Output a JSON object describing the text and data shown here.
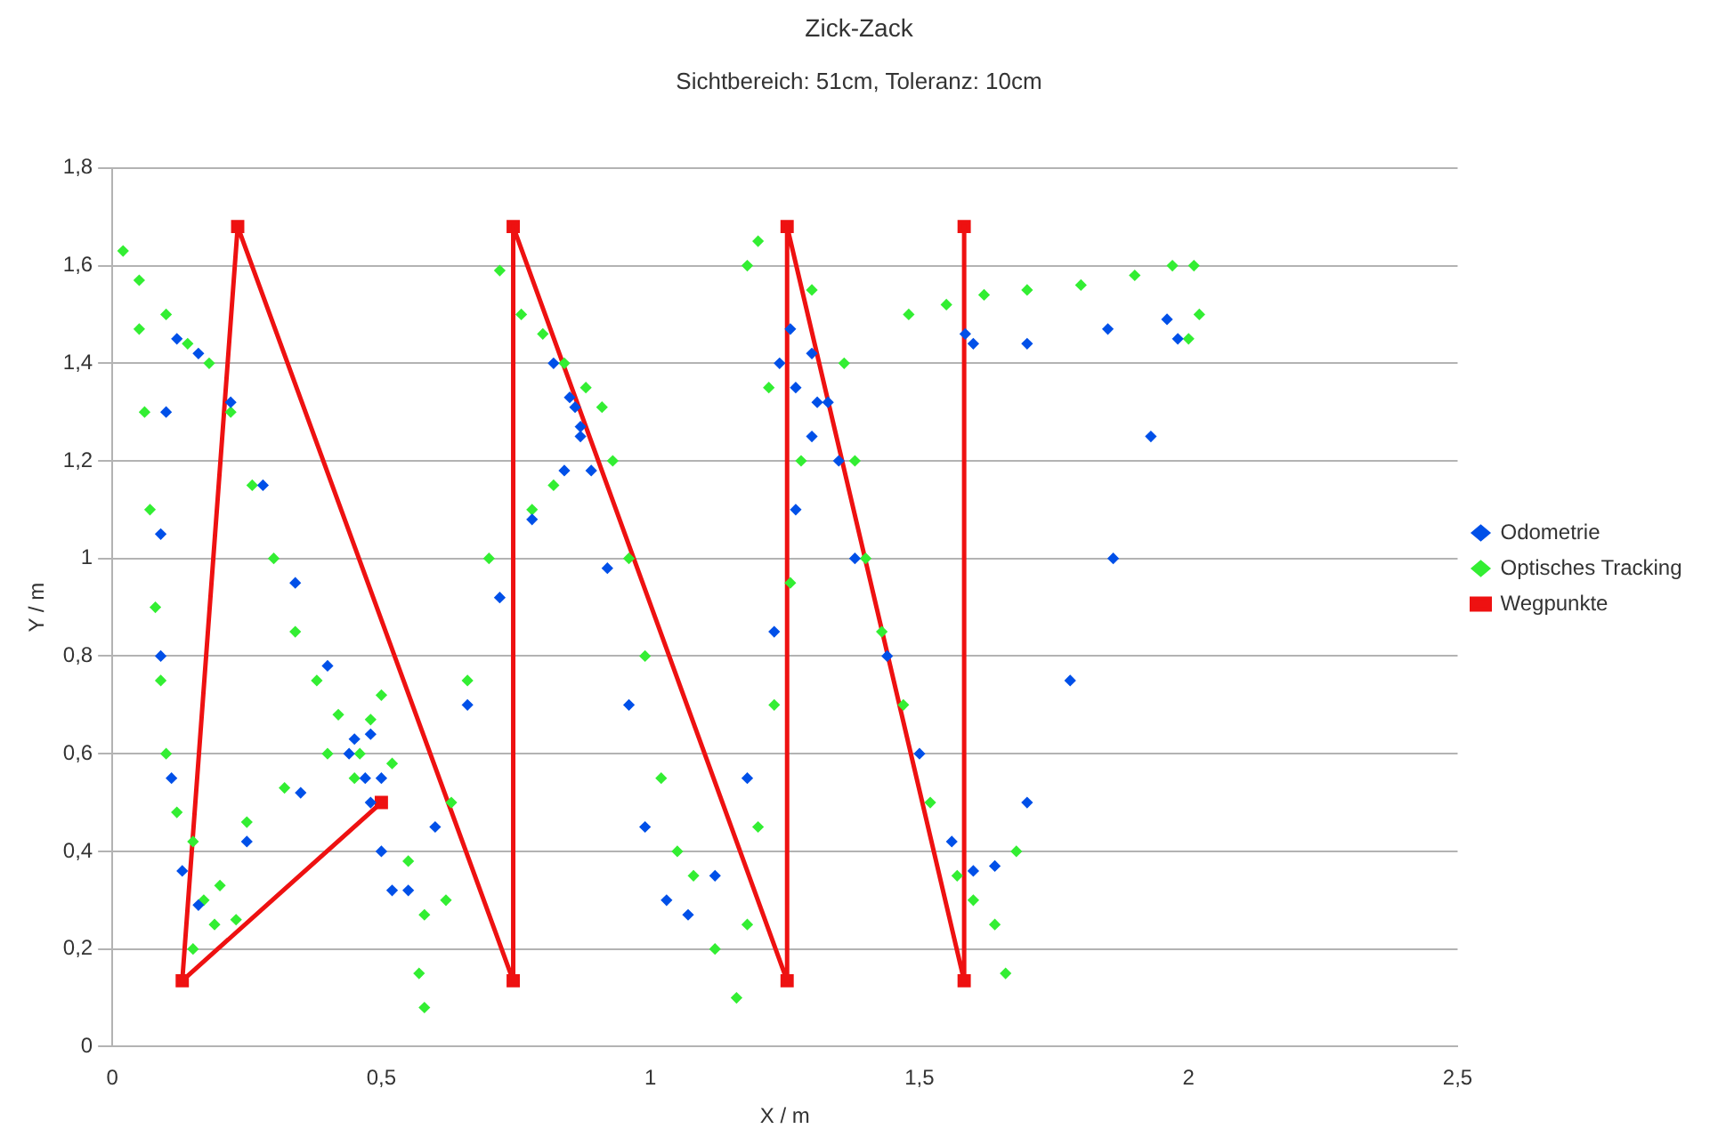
{
  "chart_data": {
    "type": "scatter",
    "title": "Zick-Zack",
    "subtitle": "Sichtbereich: 51cm, Toleranz: 10cm",
    "xlabel": "X / m",
    "ylabel": "Y / m",
    "xlim": [
      0,
      2.5
    ],
    "xticks": [
      0,
      {
        "value": 0.5,
        "label": "0,5"
      },
      1,
      {
        "value": 1.5,
        "label": "1,5"
      },
      2,
      {
        "value": 2.5,
        "label": "2,5"
      }
    ],
    "ylim": [
      0,
      1.8
    ],
    "yticks": [
      0,
      {
        "value": 0.2,
        "label": "0,2"
      },
      {
        "value": 0.4,
        "label": "0,4"
      },
      {
        "value": 0.6,
        "label": "0,6"
      },
      {
        "value": 0.8,
        "label": "0,8"
      },
      1,
      {
        "value": 1.2,
        "label": "1,2"
      },
      {
        "value": 1.4,
        "label": "1,4"
      },
      {
        "value": 1.6,
        "label": "1,6"
      },
      {
        "value": 1.8,
        "label": "1,8"
      }
    ],
    "grid": "y",
    "legend": "right",
    "series": [
      {
        "name": "Odometrie",
        "marker": "diamond",
        "color": "#0050e8",
        "x": [
          0.5,
          0.47,
          0.48,
          0.44,
          0.35,
          0.25,
          0.16,
          0.13,
          0.11,
          0.09,
          0.09,
          0.1,
          0.12,
          0.16,
          0.22,
          0.28,
          0.34,
          0.4,
          0.45,
          0.48,
          0.5,
          0.52,
          0.55,
          0.6,
          0.66,
          0.72,
          0.78,
          0.84,
          0.87,
          0.86,
          0.82,
          0.85,
          0.87,
          0.89,
          0.92,
          0.96,
          0.99,
          1.03,
          1.07,
          1.12,
          1.18,
          1.23,
          1.27,
          1.3,
          1.31,
          1.27,
          1.24,
          1.26,
          1.3,
          1.33,
          1.35,
          1.38,
          1.44,
          1.5,
          1.56,
          1.6,
          1.64,
          1.7,
          1.78,
          1.86,
          1.93,
          1.98,
          1.96,
          1.85,
          1.7,
          1.6,
          1.585
        ],
        "values": [
          0.55,
          0.55,
          0.64,
          0.6,
          0.52,
          0.42,
          0.29,
          0.36,
          0.55,
          0.8,
          1.05,
          1.3,
          1.45,
          1.42,
          1.32,
          1.15,
          0.95,
          0.78,
          0.63,
          0.5,
          0.4,
          0.32,
          0.32,
          0.45,
          0.7,
          0.92,
          1.08,
          1.18,
          1.25,
          1.31,
          1.4,
          1.33,
          1.27,
          1.18,
          0.98,
          0.7,
          0.45,
          0.3,
          0.27,
          0.35,
          0.55,
          0.85,
          1.1,
          1.25,
          1.32,
          1.35,
          1.4,
          1.47,
          1.42,
          1.32,
          1.2,
          1.0,
          0.8,
          0.6,
          0.42,
          0.36,
          0.37,
          0.5,
          0.75,
          1.0,
          1.25,
          1.45,
          1.49,
          1.47,
          1.44,
          1.44,
          1.46
        ]
      },
      {
        "name": "Optisches Tracking",
        "marker": "diamond",
        "color": "#33ee33",
        "x": [
          0.02,
          0.05,
          0.05,
          0.06,
          0.07,
          0.08,
          0.09,
          0.1,
          0.12,
          0.15,
          0.17,
          0.19,
          0.15,
          0.1,
          0.14,
          0.18,
          0.22,
          0.26,
          0.3,
          0.34,
          0.38,
          0.42,
          0.46,
          0.48,
          0.45,
          0.4,
          0.32,
          0.25,
          0.2,
          0.23,
          0.5,
          0.52,
          0.55,
          0.58,
          0.57,
          0.58,
          0.62,
          0.63,
          0.66,
          0.7,
          0.72,
          0.76,
          0.8,
          0.84,
          0.88,
          0.91,
          0.82,
          0.78,
          0.93,
          0.96,
          0.99,
          1.02,
          1.05,
          1.08,
          1.12,
          1.16,
          1.18,
          1.2,
          1.23,
          1.26,
          1.28,
          1.22,
          1.18,
          1.2,
          1.3,
          1.36,
          1.38,
          1.4,
          1.43,
          1.47,
          1.52,
          1.57,
          1.6,
          1.64,
          1.66,
          1.68,
          1.48,
          1.55,
          1.62,
          1.7,
          1.8,
          1.9,
          1.97,
          2.01,
          2.02,
          2.0
        ],
        "values": [
          1.63,
          1.57,
          1.47,
          1.3,
          1.1,
          0.9,
          0.75,
          0.6,
          0.48,
          0.42,
          0.3,
          0.25,
          0.2,
          1.5,
          1.44,
          1.4,
          1.3,
          1.15,
          1.0,
          0.85,
          0.75,
          0.68,
          0.6,
          0.67,
          0.55,
          0.6,
          0.53,
          0.46,
          0.33,
          0.26,
          0.72,
          0.58,
          0.38,
          0.27,
          0.15,
          0.08,
          0.3,
          0.5,
          0.75,
          1.0,
          1.59,
          1.5,
          1.46,
          1.4,
          1.35,
          1.31,
          1.15,
          1.1,
          1.2,
          1.0,
          0.8,
          0.55,
          0.4,
          0.35,
          0.2,
          0.1,
          0.25,
          0.45,
          0.7,
          0.95,
          1.2,
          1.35,
          1.6,
          1.65,
          1.55,
          1.4,
          1.2,
          1.0,
          0.85,
          0.7,
          0.5,
          0.35,
          0.3,
          0.25,
          0.15,
          0.4,
          1.5,
          1.52,
          1.54,
          1.55,
          1.56,
          1.58,
          1.6,
          1.6,
          1.5,
          1.45
        ]
      },
      {
        "name": "Wegpunkte",
        "type": "line",
        "marker": "square",
        "color": "#ee1111",
        "x": [
          0.5,
          0.13,
          0.233,
          0.745,
          0.745,
          1.254,
          1.254,
          1.583,
          1.583
        ],
        "values": [
          0.5,
          0.135,
          1.68,
          0.135,
          1.68,
          0.135,
          1.68,
          0.135,
          1.68
        ]
      }
    ]
  }
}
